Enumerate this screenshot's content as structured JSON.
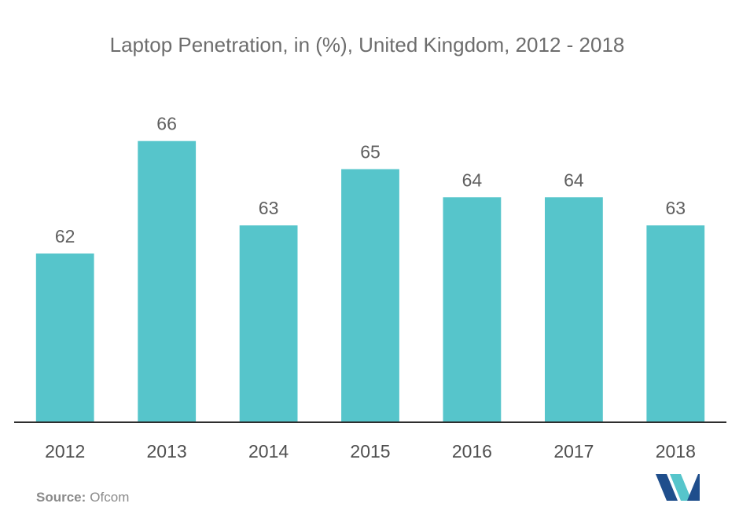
{
  "chart_data": {
    "type": "bar",
    "title": "Laptop Penetration, in (%), United Kingdom, 2012 - 2018",
    "categories": [
      "2012",
      "2013",
      "2014",
      "2015",
      "2016",
      "2017",
      "2018"
    ],
    "values": [
      62,
      66,
      63,
      65,
      64,
      64,
      63
    ],
    "xlabel": "",
    "ylabel": "",
    "ylim": [
      56,
      68
    ],
    "grid": false,
    "legend": "none",
    "bar_color": "#56c5cb",
    "baseline_color": "#2e2e2e"
  },
  "source": {
    "label": "Source:",
    "value": "Ofcom"
  },
  "logo": {
    "icon": "mordor-intelligence-logo-icon",
    "colors": [
      "#1f4e8c",
      "#56c5cb"
    ]
  }
}
